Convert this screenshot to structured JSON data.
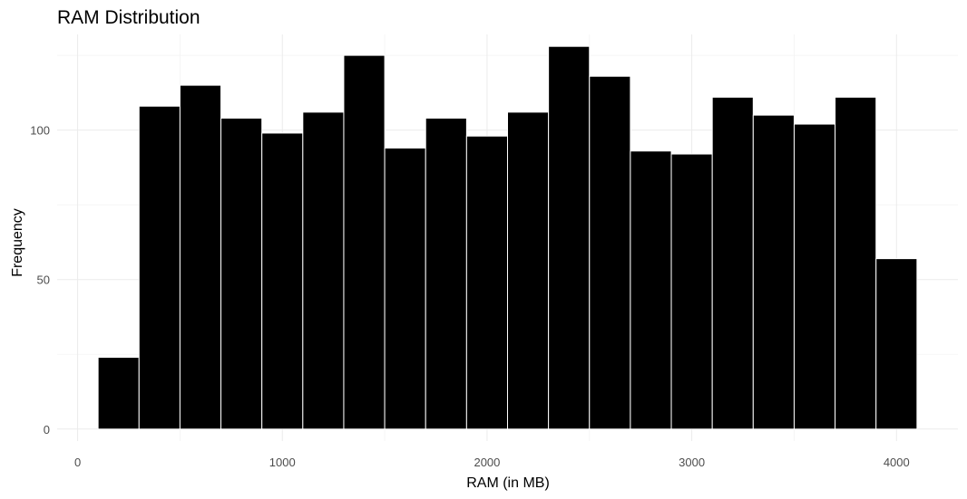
{
  "chart_data": {
    "type": "bar",
    "title": "RAM Distribution",
    "xlabel": "RAM (in MB)",
    "ylabel": "Frequency",
    "bar_color": "#000000",
    "bar_border_color": "#ffffff",
    "xlim": [
      -100,
      4300
    ],
    "ylim": [
      -4,
      132
    ],
    "x_ticks": [
      0,
      1000,
      2000,
      3000,
      4000
    ],
    "x_tick_labels": [
      "0",
      "1000",
      "2000",
      "3000",
      "4000"
    ],
    "y_ticks": [
      0,
      50,
      100
    ],
    "y_tick_labels": [
      "0",
      "50",
      "100"
    ],
    "grid": true,
    "bins": [
      {
        "x0": 100,
        "x1": 300,
        "count": 24
      },
      {
        "x0": 300,
        "x1": 500,
        "count": 108
      },
      {
        "x0": 500,
        "x1": 700,
        "count": 115
      },
      {
        "x0": 700,
        "x1": 900,
        "count": 104
      },
      {
        "x0": 900,
        "x1": 1100,
        "count": 99
      },
      {
        "x0": 1100,
        "x1": 1300,
        "count": 106
      },
      {
        "x0": 1300,
        "x1": 1500,
        "count": 125
      },
      {
        "x0": 1500,
        "x1": 1700,
        "count": 94
      },
      {
        "x0": 1700,
        "x1": 1900,
        "count": 104
      },
      {
        "x0": 1900,
        "x1": 2100,
        "count": 98
      },
      {
        "x0": 2100,
        "x1": 2300,
        "count": 106
      },
      {
        "x0": 2300,
        "x1": 2500,
        "count": 128
      },
      {
        "x0": 2500,
        "x1": 2700,
        "count": 118
      },
      {
        "x0": 2700,
        "x1": 2900,
        "count": 93
      },
      {
        "x0": 2900,
        "x1": 3100,
        "count": 92
      },
      {
        "x0": 3100,
        "x1": 3300,
        "count": 111
      },
      {
        "x0": 3300,
        "x1": 3500,
        "count": 105
      },
      {
        "x0": 3500,
        "x1": 3700,
        "count": 102
      },
      {
        "x0": 3700,
        "x1": 3900,
        "count": 111
      },
      {
        "x0": 3900,
        "x1": 4100,
        "count": 57
      }
    ]
  }
}
